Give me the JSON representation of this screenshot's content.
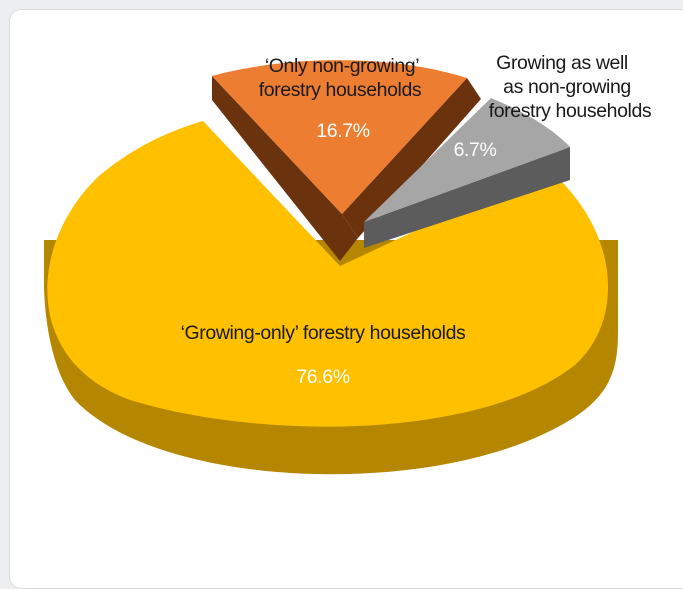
{
  "chart_data": {
    "type": "pie",
    "style": "3d-exploded",
    "slices": [
      {
        "category": "‘Growing-only’ forestry households",
        "value": 76.6,
        "value_label": "76.6%",
        "color": "#FFC000",
        "side_color": "#B58600"
      },
      {
        "category": "‘Only non-growing’ forestry households",
        "label_lines": [
          "‘Only non-growing’",
          "forestry households"
        ],
        "value": 16.7,
        "value_label": "16.7%",
        "color": "#ED7D31",
        "side_color": "#6B320E"
      },
      {
        "category": "Growing as well as non-growing forestry households",
        "label_lines": [
          "Growing as well",
          "as non-growing",
          "forestry households"
        ],
        "value": 6.7,
        "value_label": "6.7%",
        "color": "#A6A6A6",
        "side_color": "#5C5C5C"
      }
    ],
    "legend": "none",
    "title": ""
  }
}
